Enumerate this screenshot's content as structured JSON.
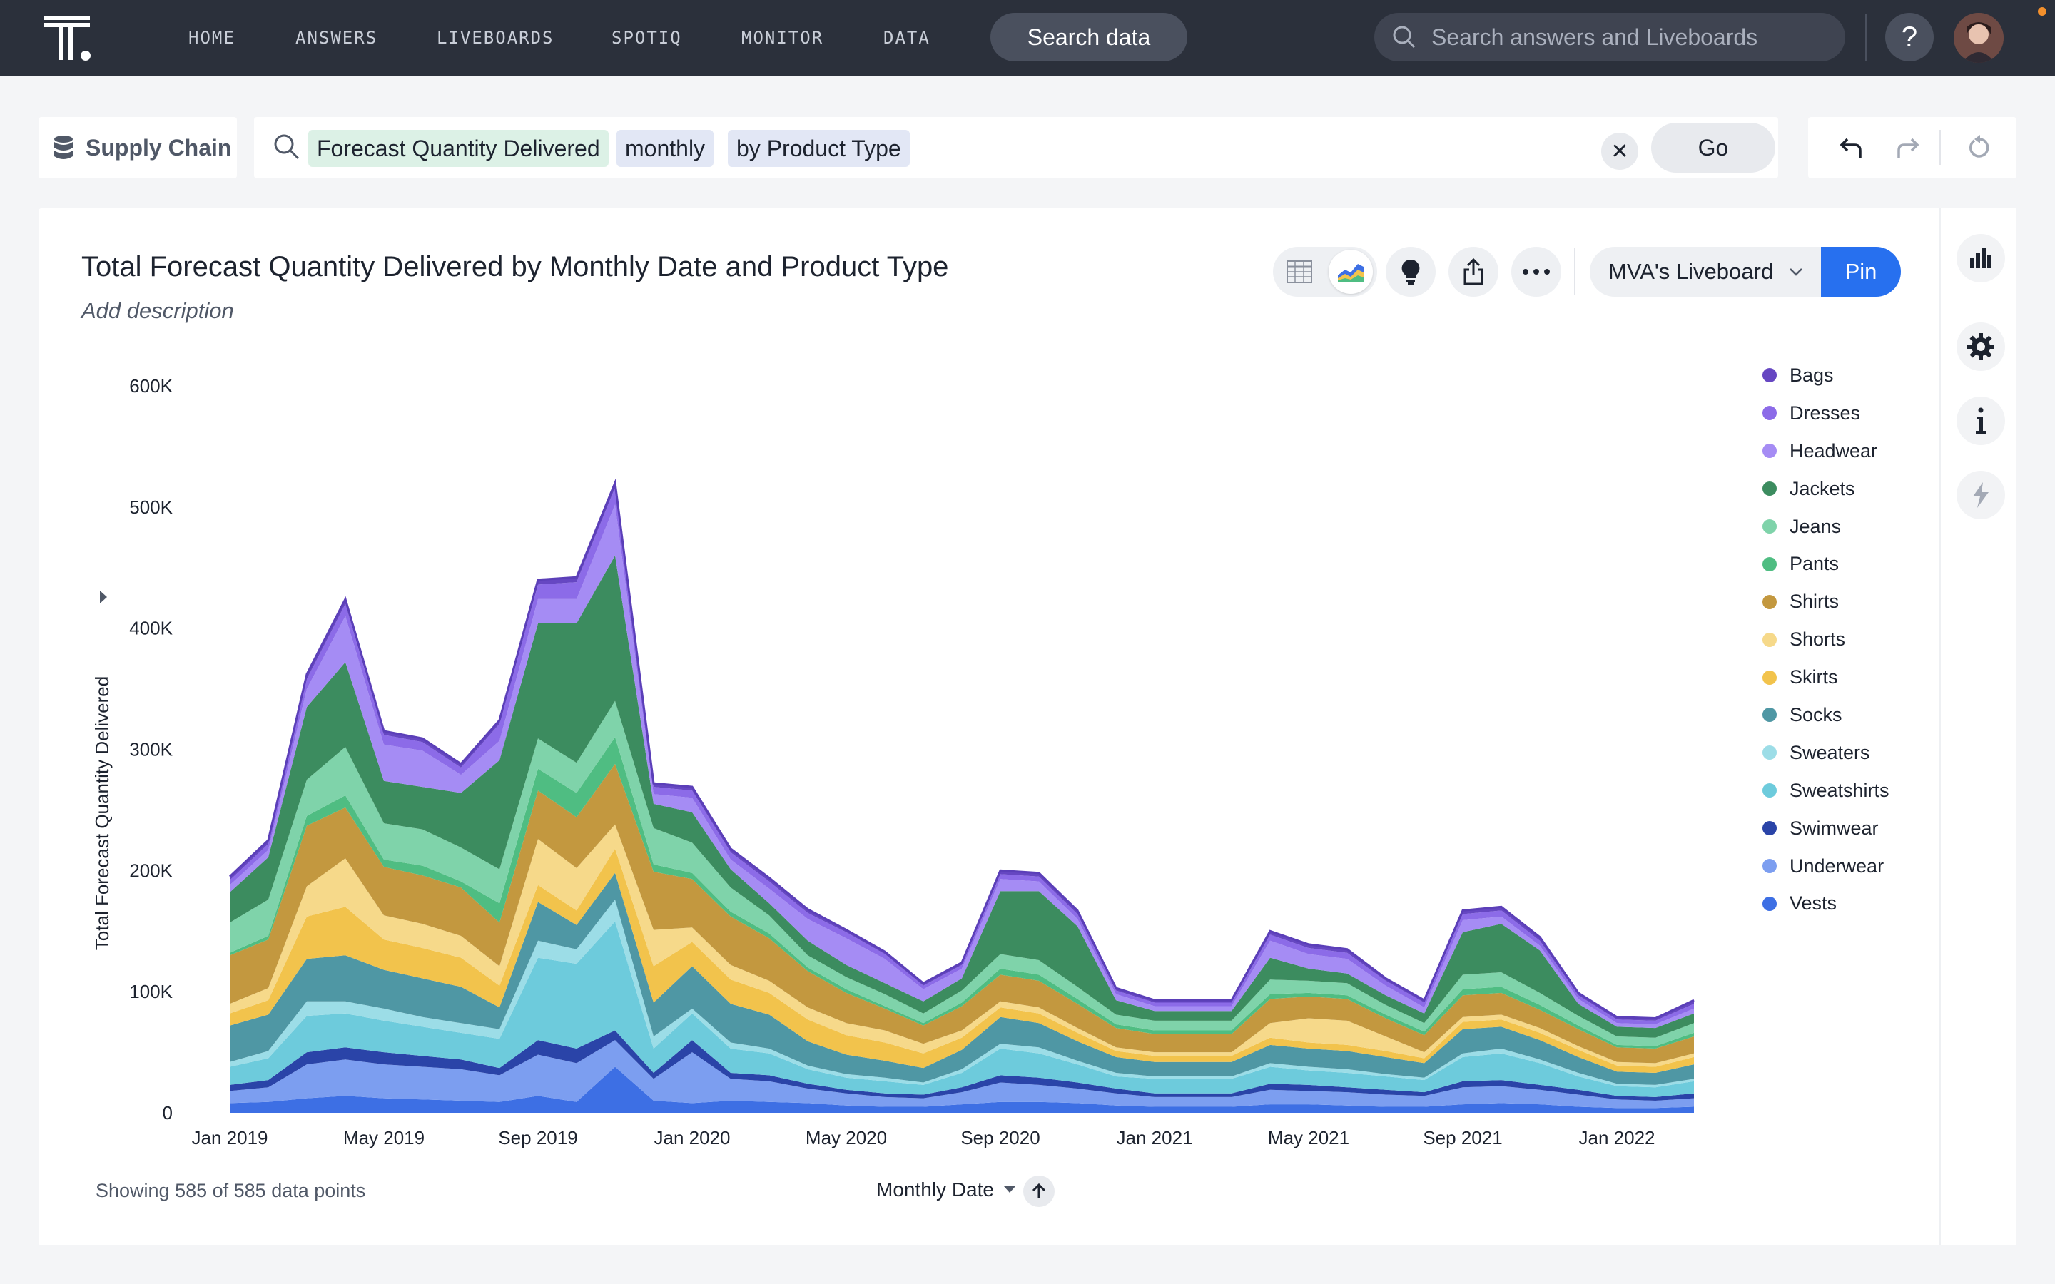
{
  "nav": {
    "items": [
      "HOME",
      "ANSWERS",
      "LIVEBOARDS",
      "SPOTIQ",
      "MONITOR",
      "DATA"
    ],
    "search_data_label": "Search data",
    "search_placeholder": "Search answers and Liveboards",
    "help_label": "?"
  },
  "searchbar": {
    "source": "Supply Chain",
    "tokens": [
      "Forecast Quantity Delivered",
      "monthly",
      "by Product Type"
    ],
    "clear_label": "✕",
    "go_label": "Go"
  },
  "answer": {
    "title": "Total Forecast Quantity Delivered by Monthly Date and Product Type",
    "description": "Add description",
    "liveboard": "MVA's Liveboard",
    "pin_label": "Pin",
    "footer": "Showing 585 of 585 data points",
    "sort_label": "Monthly Date"
  },
  "chart_data": {
    "type": "area",
    "stacked": true,
    "title": "Total Forecast Quantity Delivered by Monthly Date and Product Type",
    "xlabel": "Monthly Date",
    "ylabel": "Total Forecast Quantity Delivered",
    "ylim": [
      0,
      600000
    ],
    "yticks": [
      "0",
      "100K",
      "200K",
      "300K",
      "400K",
      "500K",
      "600K"
    ],
    "xticks": [
      "Jan 2019",
      "May 2019",
      "Sep 2019",
      "Jan 2020",
      "May 2020",
      "Sep 2020",
      "Jan 2021",
      "May 2021",
      "Sep 2021",
      "Jan 2022"
    ],
    "x": [
      "Jan 2019",
      "Feb 2019",
      "Mar 2019",
      "Apr 2019",
      "May 2019",
      "Jun 2019",
      "Jul 2019",
      "Aug 2019",
      "Sep 2019",
      "Oct 2019",
      "Nov 2019",
      "Dec 2019",
      "Jan 2020",
      "Feb 2020",
      "Mar 2020",
      "Apr 2020",
      "May 2020",
      "Jun 2020",
      "Jul 2020",
      "Aug 2020",
      "Sep 2020",
      "Oct 2020",
      "Nov 2020",
      "Dec 2020",
      "Jan 2021",
      "Feb 2021",
      "Mar 2021",
      "Apr 2021",
      "May 2021",
      "Jun 2021",
      "Jul 2021",
      "Aug 2021",
      "Sep 2021",
      "Oct 2021",
      "Nov 2021",
      "Dec 2021",
      "Jan 2022",
      "Feb 2022",
      "Mar 2022"
    ],
    "legend_position": "right",
    "series": [
      {
        "name": "Vests",
        "color": "#3d6fe4",
        "values": [
          8000,
          9000,
          12000,
          14000,
          12000,
          11000,
          10000,
          9000,
          14000,
          9000,
          38000,
          10000,
          8000,
          10000,
          9000,
          8000,
          6000,
          5000,
          5000,
          7000,
          9000,
          9000,
          8000,
          6000,
          5000,
          5000,
          5000,
          7000,
          7000,
          6000,
          5000,
          5000,
          7000,
          8000,
          7000,
          5000,
          4000,
          4000,
          5000
        ]
      },
      {
        "name": "Underwear",
        "color": "#7c9ef0",
        "values": [
          10000,
          12000,
          28000,
          30000,
          28000,
          27000,
          26000,
          22000,
          34000,
          32000,
          22000,
          18000,
          42000,
          18000,
          17000,
          12000,
          10000,
          8000,
          7000,
          10000,
          16000,
          14000,
          12000,
          10000,
          8000,
          8000,
          8000,
          12000,
          11000,
          11000,
          10000,
          9000,
          14000,
          14000,
          12000,
          10000,
          7000,
          6000,
          7000
        ]
      },
      {
        "name": "Swimwear",
        "color": "#2a44a8",
        "values": [
          5000,
          6000,
          10000,
          10000,
          10000,
          9000,
          8000,
          6000,
          12000,
          12000,
          8000,
          5000,
          10000,
          5000,
          5000,
          4000,
          3000,
          3000,
          3000,
          4000,
          6000,
          6000,
          5000,
          4000,
          3000,
          3000,
          3000,
          5000,
          5000,
          4000,
          4000,
          3000,
          5000,
          5000,
          4000,
          4000,
          3000,
          3000,
          4000
        ]
      },
      {
        "name": "Sweatshirts",
        "color": "#6dcbdc",
        "values": [
          15000,
          18000,
          30000,
          28000,
          26000,
          24000,
          22000,
          24000,
          68000,
          70000,
          90000,
          20000,
          22000,
          20000,
          18000,
          12000,
          10000,
          10000,
          8000,
          12000,
          22000,
          20000,
          15000,
          10000,
          12000,
          12000,
          12000,
          14000,
          12000,
          12000,
          11000,
          10000,
          20000,
          22000,
          18000,
          11000,
          8000,
          8000,
          10000
        ]
      },
      {
        "name": "Sweaters",
        "color": "#9cdde7",
        "values": [
          4000,
          6000,
          12000,
          10000,
          10000,
          8000,
          8000,
          8000,
          14000,
          12000,
          18000,
          10000,
          4000,
          5000,
          4000,
          3000,
          3000,
          3000,
          2000,
          3000,
          4000,
          5000,
          3000,
          3000,
          2000,
          2000,
          2000,
          3000,
          3000,
          3000,
          2000,
          2000,
          3000,
          4000,
          3000,
          3000,
          2000,
          2000,
          2000
        ]
      },
      {
        "name": "Socks",
        "color": "#4f97a4",
        "values": [
          30000,
          30000,
          35000,
          38000,
          32000,
          32000,
          30000,
          18000,
          32000,
          20000,
          22000,
          28000,
          35000,
          32000,
          28000,
          20000,
          16000,
          14000,
          12000,
          16000,
          22000,
          20000,
          16000,
          13000,
          12000,
          12000,
          12000,
          15000,
          15000,
          15000,
          14000,
          12000,
          20000,
          18000,
          16000,
          13000,
          10000,
          10000,
          12000
        ]
      },
      {
        "name": "Skirts",
        "color": "#f2c34c",
        "values": [
          10000,
          12000,
          35000,
          40000,
          25000,
          25000,
          24000,
          18000,
          14000,
          12000,
          20000,
          30000,
          20000,
          20000,
          18000,
          18000,
          16000,
          15000,
          12000,
          10000,
          8000,
          8000,
          7000,
          5000,
          5000,
          5000,
          5000,
          6000,
          5000,
          5000,
          5000,
          4000,
          6000,
          6000,
          6000,
          6000,
          5000,
          5000,
          6000
        ]
      },
      {
        "name": "Shorts",
        "color": "#f6d98a",
        "values": [
          8000,
          10000,
          25000,
          40000,
          20000,
          20000,
          18000,
          16000,
          38000,
          35000,
          20000,
          30000,
          12000,
          12000,
          10000,
          10000,
          10000,
          10000,
          8000,
          6000,
          5000,
          5000,
          4000,
          3000,
          3000,
          3000,
          3000,
          12000,
          20000,
          20000,
          12000,
          5000,
          4000,
          4000,
          4000,
          3000,
          3000,
          3000,
          3000
        ]
      },
      {
        "name": "Shirts",
        "color": "#c3983f",
        "values": [
          40000,
          40000,
          50000,
          42000,
          40000,
          40000,
          40000,
          36000,
          40000,
          42000,
          50000,
          48000,
          40000,
          40000,
          35000,
          30000,
          25000,
          18000,
          15000,
          20000,
          22000,
          22000,
          20000,
          16000,
          15000,
          15000,
          15000,
          20000,
          18000,
          18000,
          15000,
          14000,
          18000,
          18000,
          15000,
          14000,
          12000,
          12000,
          14000
        ]
      },
      {
        "name": "Pants",
        "color": "#4fbd82",
        "values": [
          2000,
          3000,
          8000,
          10000,
          6000,
          8000,
          5000,
          16000,
          18000,
          20000,
          22000,
          6000,
          5000,
          4000,
          4000,
          3000,
          3000,
          2000,
          2000,
          3000,
          5000,
          5000,
          4000,
          3000,
          3000,
          3000,
          3000,
          4000,
          3000,
          3000,
          3000,
          3000,
          5000,
          5000,
          4000,
          3000,
          2000,
          2000,
          3000
        ]
      },
      {
        "name": "Jeans",
        "color": "#7fd3aa",
        "values": [
          25000,
          30000,
          30000,
          40000,
          30000,
          30000,
          28000,
          28000,
          25000,
          25000,
          30000,
          30000,
          25000,
          20000,
          15000,
          10000,
          10000,
          10000,
          8000,
          10000,
          12000,
          12000,
          10000,
          8000,
          8000,
          8000,
          8000,
          12000,
          10000,
          10000,
          8000,
          7000,
          12000,
          12000,
          10000,
          8000,
          7000,
          7000,
          8000
        ]
      },
      {
        "name": "Jackets",
        "color": "#3c8c5f",
        "values": [
          25000,
          35000,
          60000,
          70000,
          35000,
          35000,
          45000,
          90000,
          95000,
          115000,
          120000,
          20000,
          25000,
          15000,
          10000,
          12000,
          10000,
          9000,
          10000,
          10000,
          52000,
          57000,
          50000,
          12000,
          8000,
          8000,
          8000,
          18000,
          10000,
          8000,
          8000,
          8000,
          35000,
          40000,
          35000,
          10000,
          8000,
          8000,
          8000
        ]
      },
      {
        "name": "Headwear",
        "color": "#a58cf4",
        "values": [
          6000,
          6000,
          15000,
          38000,
          30000,
          30000,
          15000,
          16000,
          20000,
          20000,
          42000,
          8000,
          12000,
          8000,
          12000,
          18000,
          22000,
          20000,
          10000,
          8000,
          10000,
          8000,
          6000,
          5000,
          4000,
          4000,
          4000,
          14000,
          12000,
          12000,
          8000,
          5000,
          10000,
          6000,
          4000,
          4000,
          3000,
          3000,
          4000
        ]
      },
      {
        "name": "Dresses",
        "color": "#8c6be8",
        "values": [
          4000,
          5000,
          8000,
          10000,
          8000,
          7000,
          6000,
          14000,
          12000,
          14000,
          14000,
          6000,
          6000,
          6000,
          6000,
          5000,
          5000,
          4000,
          3000,
          3000,
          4000,
          4000,
          4000,
          3000,
          3000,
          3000,
          3000,
          5000,
          5000,
          5000,
          4000,
          4000,
          5000,
          5000,
          4000,
          3000,
          3000,
          3000,
          4000
        ]
      },
      {
        "name": "Bags",
        "color": "#6647c2",
        "values": [
          3000,
          3000,
          4000,
          4000,
          3000,
          3000,
          3000,
          3000,
          4000,
          4000,
          4000,
          3000,
          3000,
          3000,
          3000,
          3000,
          2000,
          2000,
          2000,
          2000,
          3000,
          3000,
          3000,
          2000,
          2000,
          2000,
          2000,
          3000,
          3000,
          3000,
          2000,
          2000,
          3000,
          3000,
          3000,
          2000,
          2000,
          2000,
          3000
        ]
      }
    ]
  }
}
